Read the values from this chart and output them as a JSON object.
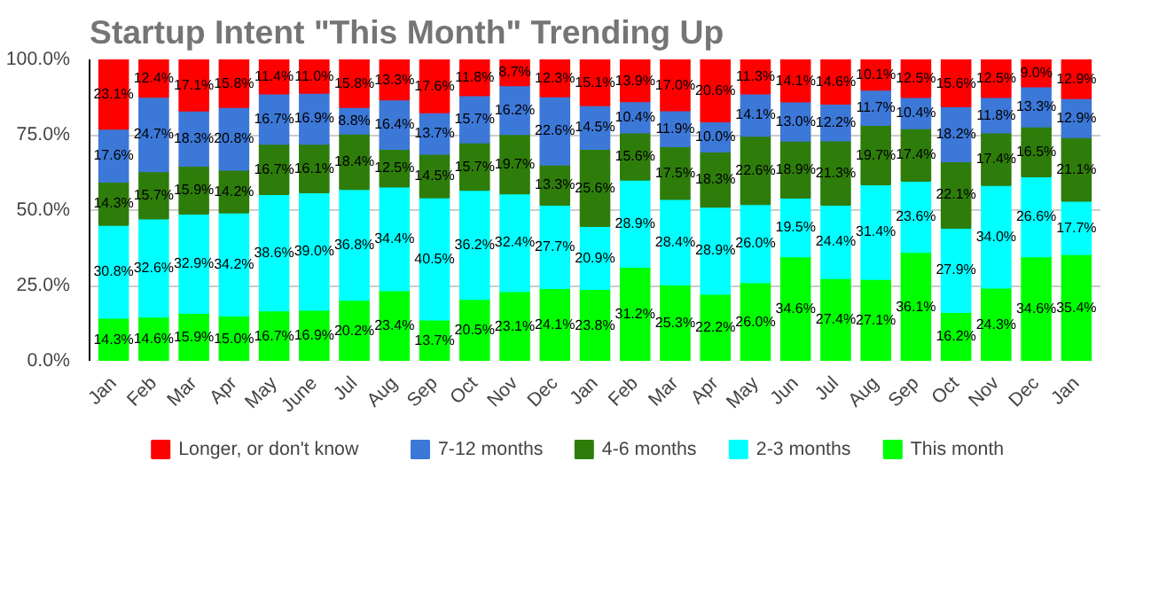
{
  "chart_data": {
    "type": "bar",
    "stacked": true,
    "title": "Startup Intent \"This Month\" Trending Up",
    "categories": [
      "Jan",
      "Feb",
      "Mar",
      "Apr",
      "May",
      "June",
      "Jul",
      "Aug",
      "Sep",
      "Oct",
      "Nov",
      "Dec",
      "Jan",
      "Feb",
      "Mar",
      "Apr",
      "May",
      "Jun",
      "Jul",
      "Aug",
      "Sep",
      "Oct",
      "Nov",
      "Dec",
      "Jan"
    ],
    "series": [
      {
        "name": "This month",
        "color": "#00ff00",
        "values": [
          14.3,
          14.6,
          15.9,
          15.0,
          16.7,
          16.9,
          20.2,
          23.4,
          13.7,
          20.5,
          23.1,
          24.1,
          23.8,
          31.2,
          25.3,
          22.2,
          26.0,
          34.6,
          27.4,
          27.1,
          36.1,
          16.2,
          24.3,
          34.6,
          35.4
        ],
        "value_labels": [
          "14.3%",
          "14.6%",
          "15.9%",
          "15.0%",
          "16.7%",
          "16.9%",
          "20.2%",
          "23.4%",
          "13.7%",
          "20.5%",
          "23.1%",
          "24.1%",
          "23.8%",
          "31.2%",
          "25.3%",
          "22.2%",
          "26.0%",
          "34.6%",
          "27.4%",
          "27.1%",
          "36.1%",
          "16.2%",
          "24.3%",
          "34.6%",
          "35.4%"
        ]
      },
      {
        "name": "2-3 months",
        "color": "#00ffff",
        "values": [
          30.8,
          32.6,
          32.9,
          34.2,
          38.6,
          39.0,
          36.8,
          34.4,
          40.5,
          36.2,
          32.4,
          27.7,
          20.9,
          28.9,
          28.4,
          28.9,
          26.0,
          19.5,
          24.4,
          31.4,
          23.6,
          27.9,
          34.0,
          26.6,
          17.7
        ],
        "value_labels": [
          "30.8%",
          "32.6%",
          "32.9%",
          "34.2%",
          "38.6%",
          "39.0%",
          "36.8%",
          "34.4%",
          "40.5%",
          "36.2%",
          "32.4%",
          "27.7%",
          "20.9%",
          "28.9%",
          "28.4%",
          "28.9%",
          "26.0%",
          "19.5%",
          "24.4%",
          "31.4%",
          "23.6%",
          "27.9%",
          "34.0%",
          "26.6%",
          "17.7%"
        ]
      },
      {
        "name": "4-6 months",
        "color": "#2e7d0b",
        "values": [
          14.3,
          15.7,
          15.9,
          14.2,
          16.7,
          16.1,
          18.4,
          12.5,
          14.5,
          15.7,
          19.7,
          13.3,
          25.6,
          15.6,
          17.5,
          18.3,
          22.6,
          18.9,
          21.3,
          19.7,
          17.4,
          22.1,
          17.4,
          16.5,
          21.1
        ],
        "value_labels": [
          "14.3%",
          "15.7%",
          "15.9%",
          "14.2%",
          "16.7%",
          "16.1%",
          "18.4%",
          "12.5%",
          "14.5%",
          "15.7%",
          "19.7%",
          "13.3%",
          "25.6%",
          "15.6%",
          "17.5%",
          "18.3%",
          "22.6%",
          "18.9%",
          "21.3%",
          "19.7%",
          "17.4%",
          "22.1%",
          "17.4%",
          "16.5%",
          "21.1%"
        ]
      },
      {
        "name": "7-12 months",
        "color": "#3c78d8",
        "values": [
          17.6,
          24.7,
          18.3,
          20.8,
          16.7,
          16.9,
          8.8,
          16.4,
          13.7,
          15.7,
          16.2,
          22.6,
          14.5,
          10.4,
          11.9,
          10.0,
          14.1,
          13.0,
          12.2,
          11.7,
          10.4,
          18.2,
          11.8,
          13.3,
          12.9
        ],
        "value_labels": [
          "17.6%",
          "24.7%",
          "18.3%",
          "20.8%",
          "16.7%",
          "16.9%",
          "8.8%",
          "16.4%",
          "13.7%",
          "15.7%",
          "16.2%",
          "22.6%",
          "14.5%",
          "10.4%",
          "11.9%",
          "10.0%",
          "14.1%",
          "13.0%",
          "12.2%",
          "11.7%",
          "10.4%",
          "18.2%",
          "11.8%",
          "13.3%",
          "12.9%"
        ]
      },
      {
        "name": "Longer, or don't know",
        "color": "#ff0000",
        "values": [
          23.1,
          12.4,
          17.1,
          15.8,
          11.4,
          11.0,
          15.8,
          13.3,
          17.6,
          11.8,
          8.7,
          12.3,
          15.1,
          13.9,
          17.0,
          20.6,
          11.3,
          14.1,
          14.6,
          10.1,
          12.5,
          15.6,
          12.5,
          9.0,
          12.9
        ],
        "value_labels": [
          "23.1%",
          "12.4%",
          "17.1%",
          "15.8%",
          "11.4%",
          "11.0%",
          "15.8%",
          "13.3%",
          "17.6%",
          "11.8%",
          "8.7%",
          "12.3%",
          "15.1%",
          "13.9%",
          "17.0%",
          "20.6%",
          "11.3%",
          "14.1%",
          "14.6%",
          "10.1%",
          "12.5%",
          "15.6%",
          "12.5%",
          "9.0%",
          "12.9%"
        ]
      }
    ],
    "ylim": [
      0,
      100
    ],
    "yticks": [
      {
        "value": 0,
        "label": "0.0%"
      },
      {
        "value": 25,
        "label": "25.0%"
      },
      {
        "value": 50,
        "label": "50.0%"
      },
      {
        "value": 75,
        "label": "75.0%"
      },
      {
        "value": 100,
        "label": "100.0%"
      }
    ],
    "grid": "y",
    "legend": "bottom"
  }
}
